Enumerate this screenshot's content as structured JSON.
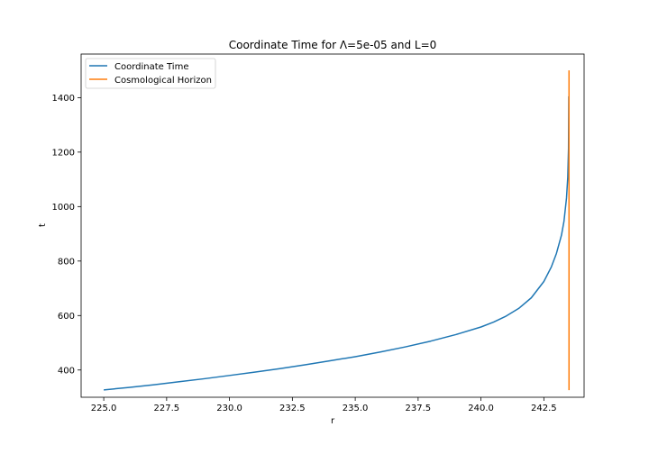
{
  "chart_data": {
    "type": "line",
    "title": "Coordinate Time for Λ=5e-05 and L=0",
    "xlabel": "r",
    "ylabel": "t",
    "xlim": [
      224.1,
      244.1
    ],
    "ylim": [
      300,
      1560
    ],
    "xticks": [
      225.0,
      227.5,
      230.0,
      232.5,
      235.0,
      237.5,
      240.0,
      242.5
    ],
    "xtick_labels": [
      "225.0",
      "227.5",
      "230.0",
      "232.5",
      "235.0",
      "237.5",
      "240.0",
      "242.5"
    ],
    "yticks": [
      400,
      600,
      800,
      1000,
      1200,
      1400
    ],
    "ytick_labels": [
      "400",
      "600",
      "800",
      "1000",
      "1200",
      "1400"
    ],
    "grid": false,
    "legend_position": "top-left",
    "series": [
      {
        "name": "Coordinate Time",
        "color": "#1f77b4",
        "x": [
          225.0,
          226.0,
          227.0,
          228.0,
          229.0,
          230.0,
          231.0,
          232.0,
          233.0,
          234.0,
          235.0,
          236.0,
          237.0,
          238.0,
          239.0,
          240.0,
          240.5,
          241.0,
          241.5,
          242.0,
          242.5,
          242.8,
          243.0,
          243.2,
          243.3,
          243.4,
          243.45,
          243.48,
          243.49
        ],
        "y": [
          327,
          336,
          346,
          357,
          368,
          380,
          392,
          405,
          419,
          434,
          449,
          466,
          485,
          506,
          530,
          558,
          576,
          598,
          626,
          665,
          725,
          779,
          828,
          895,
          946,
          1031,
          1107,
          1213,
          1405
        ]
      },
      {
        "name": "Cosmological Horizon",
        "color": "#ff7f0e",
        "x": [
          243.5,
          243.5
        ],
        "y": [
          326,
          1500
        ]
      }
    ]
  }
}
